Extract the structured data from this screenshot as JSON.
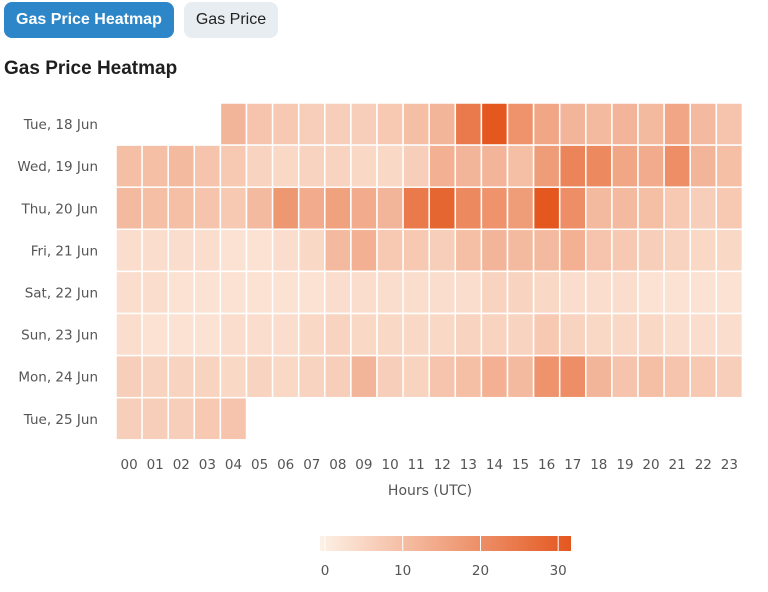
{
  "tabs": [
    {
      "label": "Gas Price Heatmap",
      "active": true
    },
    {
      "label": "Gas Price",
      "active": false
    }
  ],
  "page_title": "Gas Price Heatmap",
  "colors": {
    "low": "#fdf1e6",
    "high": "#e4571f",
    "tab_active": "#2c86c8",
    "tab_inactive": "#e8edf1"
  },
  "chart_data": {
    "type": "heatmap",
    "xlabel": "Hours (UTC)",
    "x_categories": [
      "00",
      "01",
      "02",
      "03",
      "04",
      "05",
      "06",
      "07",
      "08",
      "09",
      "10",
      "11",
      "12",
      "13",
      "14",
      "15",
      "16",
      "17",
      "18",
      "19",
      "20",
      "21",
      "22",
      "23"
    ],
    "y_categories": [
      "Tue, 18 Jun",
      "Wed, 19 Jun",
      "Thu, 20 Jun",
      "Fri, 21 Jun",
      "Sat, 22 Jun",
      "Sun, 23 Jun",
      "Mon, 24 Jun",
      "Tue, 25 Jun"
    ],
    "values": [
      [
        null,
        null,
        null,
        null,
        12,
        9,
        8,
        7,
        7,
        7,
        8,
        10,
        12,
        24,
        31,
        19,
        15,
        12,
        11,
        12,
        11,
        15,
        11,
        9
      ],
      [
        10,
        10,
        11,
        9,
        8,
        6,
        5,
        6,
        6,
        5,
        5,
        7,
        13,
        12,
        12,
        10,
        17,
        22,
        21,
        15,
        14,
        20,
        12,
        10
      ],
      [
        11,
        10,
        10,
        9,
        8,
        11,
        18,
        14,
        16,
        14,
        12,
        24,
        28,
        21,
        19,
        17,
        31,
        20,
        11,
        11,
        10,
        8,
        7,
        8
      ],
      [
        4,
        4,
        4,
        4,
        3,
        3,
        4,
        5,
        11,
        13,
        8,
        8,
        7,
        10,
        12,
        11,
        11,
        13,
        9,
        8,
        7,
        6,
        5,
        5
      ],
      [
        4,
        4,
        3,
        3,
        3,
        3,
        3,
        3,
        4,
        4,
        4,
        4,
        4,
        4,
        6,
        6,
        5,
        4,
        4,
        4,
        3,
        3,
        3,
        3
      ],
      [
        4,
        3,
        3,
        3,
        4,
        4,
        4,
        5,
        6,
        5,
        5,
        5,
        5,
        6,
        6,
        6,
        8,
        6,
        5,
        5,
        5,
        4,
        4,
        4
      ],
      [
        7,
        6,
        6,
        6,
        5,
        6,
        5,
        6,
        7,
        12,
        7,
        6,
        9,
        10,
        13,
        11,
        19,
        20,
        12,
        9,
        10,
        9,
        8,
        7
      ],
      [
        7,
        7,
        7,
        8,
        9,
        null,
        null,
        null,
        null,
        null,
        null,
        null,
        null,
        null,
        null,
        null,
        null,
        null,
        null,
        null,
        null,
        null,
        null,
        null
      ]
    ],
    "colorbar": {
      "min": 0,
      "max": 31,
      "ticks": [
        0,
        10,
        20,
        30
      ]
    }
  }
}
